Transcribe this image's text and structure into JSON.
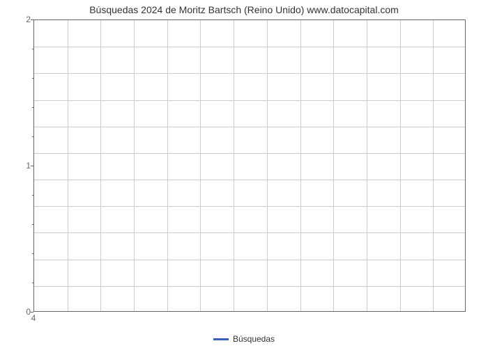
{
  "chart": {
    "type": "line",
    "title": "Búsquedas 2024 de Moritz Bartsch (Reino Unido) www.datocapital.com",
    "title_fontsize": 14,
    "title_color": "#333333",
    "background_color": "#ffffff",
    "plot_border_color": "#666666",
    "grid_color": "#cccccc",
    "grid_on": true,
    "x": {
      "ticks": [
        4
      ],
      "tick_labels": [
        "4"
      ],
      "n_vertical_gridlines": 13
    },
    "y": {
      "lim": [
        0,
        2
      ],
      "major_ticks": [
        0,
        1,
        2
      ],
      "major_tick_labels": [
        "0",
        "1",
        "2"
      ],
      "minor_tick_interval": 0.2,
      "n_horizontal_gridlines": 11
    },
    "series": [
      {
        "name": "Búsquedas",
        "color": "#3b5fc0",
        "line_width": 3,
        "values": []
      }
    ],
    "legend": {
      "position": "bottom-center",
      "items": [
        {
          "label": "Búsquedas",
          "color": "#3b5fc0"
        }
      ],
      "fontsize": 12
    },
    "tick_label_color": "#666666",
    "tick_label_fontsize": 12
  }
}
